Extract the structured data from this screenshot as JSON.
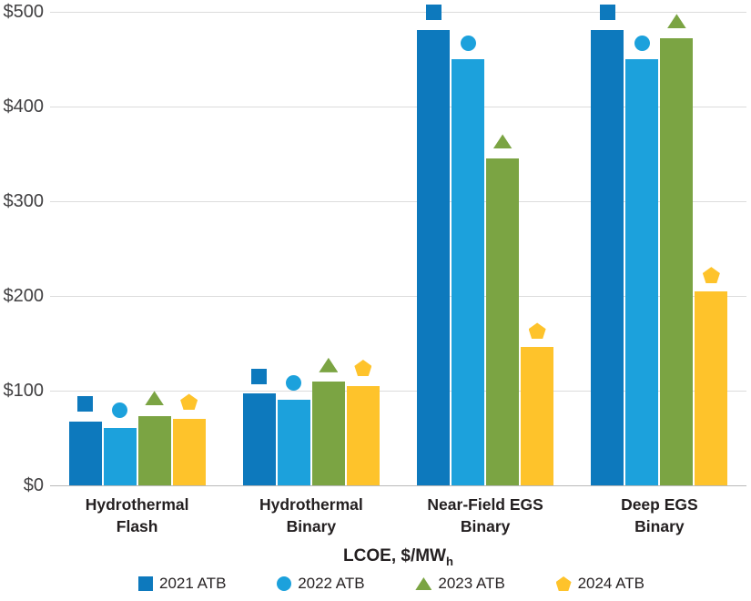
{
  "chart_data": {
    "type": "bar",
    "title": "",
    "xlabel": "LCOE, $/MWh",
    "xlabel_main": "LCOE, $/MW",
    "xlabel_sub": "h",
    "ylabel": "",
    "ylim": [
      0,
      500
    ],
    "yticks": [
      0,
      100,
      200,
      300,
      400,
      500
    ],
    "ytick_labels": [
      "$0",
      "$100",
      "$200",
      "$300",
      "$400",
      "$500"
    ],
    "grid": true,
    "legend_position": "bottom",
    "categories": [
      "Hydrothermal Flash",
      "Hydrothermal Binary",
      "Near-Field EGS Binary",
      "Deep EGS Binary"
    ],
    "category_lines": [
      [
        "Hydrothermal",
        "Flash"
      ],
      [
        "Hydrothermal",
        "Binary"
      ],
      [
        "Near-Field EGS",
        "Binary"
      ],
      [
        "Deep EGS",
        "Binary"
      ]
    ],
    "series": [
      {
        "name": "2021 ATB",
        "marker": "square",
        "color": "#0d79bd",
        "bar_values": [
          67,
          97,
          481,
          481
        ],
        "marker_values": [
          86,
          115,
          500,
          500
        ]
      },
      {
        "name": "2022 ATB",
        "marker": "circle",
        "color": "#1ca1dc",
        "bar_values": [
          61,
          90,
          450,
          450
        ],
        "marker_values": [
          79,
          108,
          467,
          467
        ]
      },
      {
        "name": "2023 ATB",
        "marker": "triangle",
        "color": "#7ba443",
        "bar_values": [
          73,
          110,
          345,
          472
        ],
        "marker_values": [
          92,
          127,
          363,
          490
        ]
      },
      {
        "name": "2024 ATB",
        "marker": "pentagon",
        "color": "#fec32b",
        "bar_values": [
          70,
          105,
          146,
          205
        ],
        "marker_values": [
          88,
          124,
          163,
          222
        ]
      }
    ]
  },
  "colors": {
    "gridline": "#dcdcdc",
    "zero_line": "#b9b9b9",
    "tick_text": "#414042",
    "label_text": "#231f20"
  }
}
